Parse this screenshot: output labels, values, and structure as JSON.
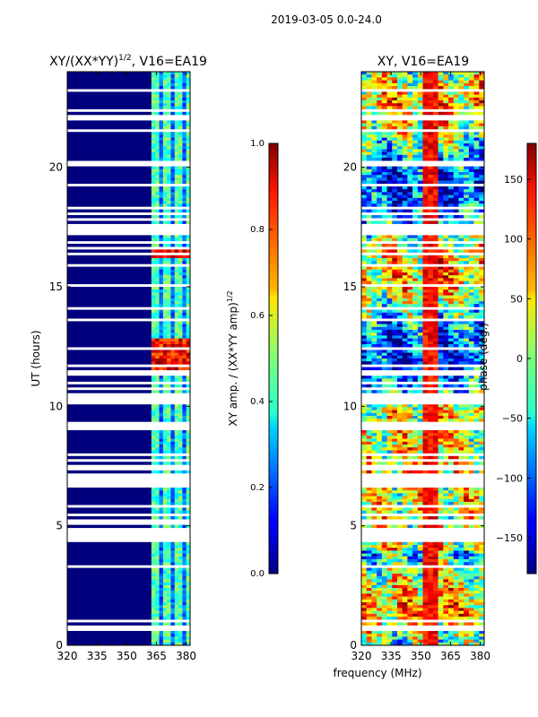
{
  "suptitle": "2019-03-05 0.0-24.0",
  "chart_data": [
    {
      "type": "heatmap",
      "title_main": "XY/(XX*YY)",
      "title_sup": "1/2",
      "title_tail": ", V16=EA19",
      "ylabel": "UT (hours)",
      "xlabel": "",
      "xlim": [
        320,
        382
      ],
      "ylim": [
        0,
        24
      ],
      "x_ticks": [
        320,
        335,
        350,
        365,
        380
      ],
      "y_ticks": [
        0,
        5,
        10,
        15,
        20
      ],
      "colormap": "jet",
      "colorbar": {
        "label_main": "XY amp. / (XX*YY amp)",
        "label_sup": "1/2",
        "range": [
          0.0,
          1.0
        ],
        "ticks": [
          "0.0",
          "0.2",
          "0.4",
          "0.6",
          "0.8",
          "1.0"
        ]
      }
    },
    {
      "type": "heatmap",
      "title": "XY, V16=EA19",
      "ylabel": "",
      "xlabel": "frequency (MHz)",
      "xlim": [
        320,
        382
      ],
      "ylim": [
        0,
        24
      ],
      "x_ticks": [
        320,
        335,
        350,
        365,
        380
      ],
      "y_ticks": [
        0,
        5,
        10,
        15,
        20
      ],
      "colormap": "jet",
      "colorbar": {
        "label": "phase (deg.)",
        "range": [
          -180,
          180
        ],
        "ticks": [
          "150",
          "100",
          "50",
          "0",
          "−50",
          "−100",
          "−150"
        ],
        "tick_values": [
          150,
          100,
          50,
          0,
          -50,
          -100,
          -150
        ]
      }
    }
  ],
  "colors": {
    "low": "#00007f",
    "high": "#7f0000",
    "flagged": "#ffffff"
  }
}
